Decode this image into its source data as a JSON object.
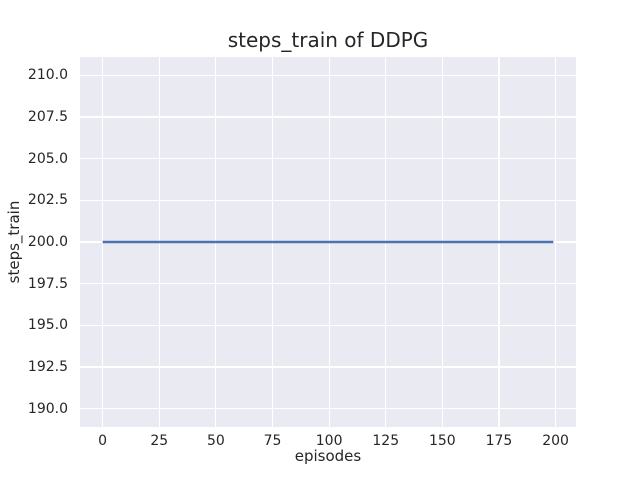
{
  "chart_data": {
    "type": "line",
    "title": "steps_train of DDPG",
    "xlabel": "episodes",
    "ylabel": "steps_train",
    "xlim": [
      -10,
      209
    ],
    "ylim": [
      188.9,
      211.1
    ],
    "x_ticks": [
      0,
      25,
      50,
      75,
      100,
      125,
      150,
      175,
      200
    ],
    "x_tick_labels": [
      "0",
      "25",
      "50",
      "75",
      "100",
      "125",
      "150",
      "175",
      "200"
    ],
    "y_ticks": [
      190.0,
      192.5,
      195.0,
      197.5,
      200.0,
      202.5,
      205.0,
      207.5,
      210.0
    ],
    "y_tick_labels": [
      "190.0",
      "192.5",
      "195.0",
      "197.5",
      "200.0",
      "202.5",
      "205.0",
      "207.5",
      "210.0"
    ],
    "grid": true,
    "legend": "none",
    "series": [
      {
        "name": "steps_train",
        "x": [
          0,
          199
        ],
        "y": [
          200,
          200
        ],
        "description": "constant value 200 for every episode from 0 to 199",
        "color": "#4c72b0",
        "linewidth": 2.5
      }
    ],
    "colors": {
      "figure_background": "#ffffff",
      "axes_background": "#eaeaf2",
      "grid": "#ffffff",
      "text": "#262626"
    }
  }
}
